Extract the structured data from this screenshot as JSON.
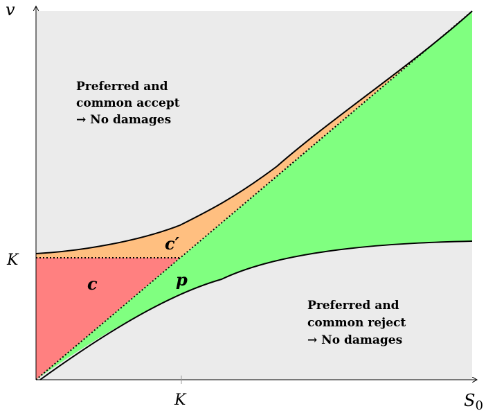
{
  "axes": {
    "y_label": "v",
    "x_label": "S",
    "x_label_sub": "0",
    "x_tick": "K",
    "y_tick": "K"
  },
  "regions": {
    "top": {
      "line1": "Preferred and",
      "line2": "common accept",
      "line3": "→ No damages"
    },
    "bottom": {
      "line1": "Preferred and",
      "line2": "common reject",
      "line3": "→ No damages"
    },
    "c_label": "c",
    "cprime_label": "c′",
    "p_label": "p"
  },
  "colors": {
    "background": "#ebebeb",
    "red": "#ff8080",
    "orange": "#ffbf80",
    "green": "#80ff80"
  }
}
